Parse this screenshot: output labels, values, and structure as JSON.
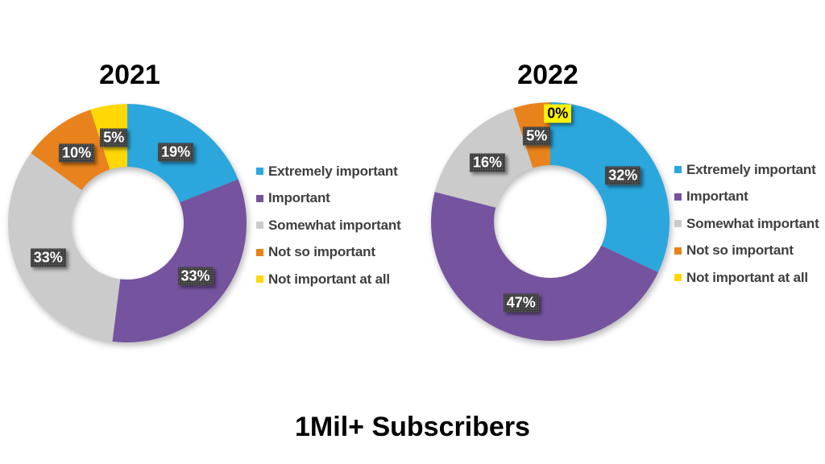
{
  "slide": {
    "background": "#FFFFFF",
    "footer_title": "1Mil+ Subscribers"
  },
  "styles": {
    "title_color": "#000000",
    "legend_text_color": "#3F3F3F",
    "label_box": {
      "bg": "#3B3B3B",
      "text": "#FFFFFF"
    },
    "zero_label_box": {
      "bg": "#FFF200",
      "text": "#000000"
    }
  },
  "chart_data": [
    {
      "type": "pie",
      "subtype": "donut",
      "title": "2021",
      "categories": [
        "Extremely important",
        "Important",
        "Somewhat important",
        "Not so important",
        "Not important at all"
      ],
      "values": [
        19,
        33,
        33,
        10,
        5
      ],
      "data_labels": [
        "19%",
        "33%",
        "33%",
        "10%",
        "5%"
      ],
      "colors": [
        "#2BA7DE",
        "#75539F",
        "#CBCBCB",
        "#E8821D",
        "#FFD806"
      ],
      "legend_position": "right",
      "start_angle": "top",
      "direction": "clockwise"
    },
    {
      "type": "pie",
      "subtype": "donut",
      "title": "2022",
      "categories": [
        "Extremely important",
        "Important",
        "Somewhat important",
        "Not so important",
        "Not important at all"
      ],
      "values": [
        32,
        47,
        16,
        5,
        0
      ],
      "data_labels": [
        "32%",
        "47%",
        "16%",
        "5%",
        "0%"
      ],
      "colors": [
        "#2BA7DE",
        "#75539F",
        "#CBCBCB",
        "#E8821D",
        "#FFD806"
      ],
      "legend_position": "right",
      "start_angle": "top",
      "direction": "clockwise"
    }
  ]
}
